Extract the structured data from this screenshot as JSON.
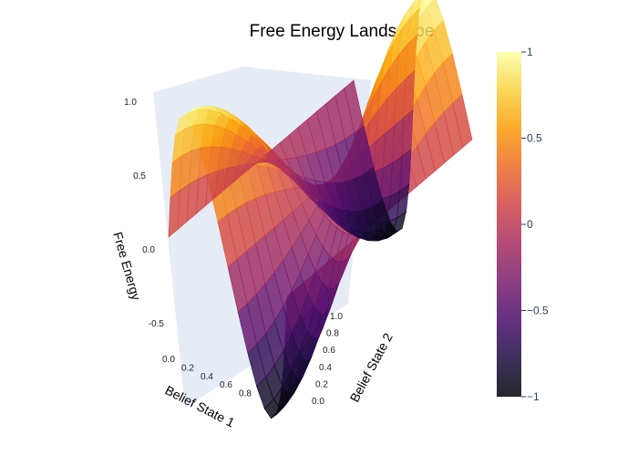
{
  "chart_data": {
    "type": "surface",
    "title": "Free Energy Landscape",
    "xlabel": "Belief State 1",
    "ylabel": "Belief State 2",
    "zlabel": "Free Energy",
    "x": [
      0,
      0.1,
      0.2,
      0.3,
      0.4,
      0.5,
      0.6,
      0.7,
      0.8,
      0.9,
      1.0
    ],
    "y": [
      0,
      0.1,
      0.2,
      0.3,
      0.4,
      0.5,
      0.6,
      0.7,
      0.8,
      0.9,
      1.0
    ],
    "z_formula": "sin(2*pi*x) * cos(pi*y)",
    "xlim": [
      0,
      1
    ],
    "ylim": [
      0,
      1
    ],
    "zlim": [
      -0.8,
      1.0
    ],
    "x_ticks": [
      "0.0",
      "0.2",
      "0.4",
      "0.6",
      "0.8"
    ],
    "y_ticks": [
      "0.0",
      "0.2",
      "0.4",
      "0.6",
      "0.8",
      "1.0"
    ],
    "z_ticks": [
      "-0.5",
      "0.0",
      "0.5",
      "1.0"
    ],
    "colorscale": "Inferno",
    "colorbar": {
      "cmin": -1,
      "cmax": 1,
      "ticks": [
        "1",
        "0.5",
        "0",
        "−0.5",
        "−1"
      ]
    },
    "colors": {
      "background": "#ffffff",
      "scene": "#e5ecf6"
    }
  }
}
